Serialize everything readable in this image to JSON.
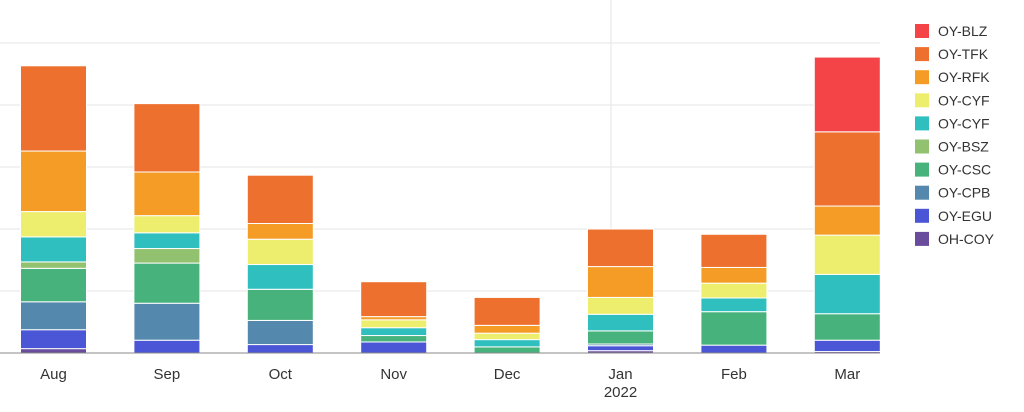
{
  "chart_data": {
    "type": "bar",
    "stacked": true,
    "categories": [
      "Aug",
      "Sep",
      "Oct",
      "Nov",
      "Dec",
      "Jan",
      "Feb",
      "Mar"
    ],
    "category_sublabels": [
      "",
      "",
      "",
      "",
      "",
      "2022",
      "",
      ""
    ],
    "ylim": [
      0,
      100
    ],
    "grid": true,
    "legend_position": "right",
    "series": [
      {
        "name": "OH-COY",
        "color": "#6a4c9c",
        "values": [
          1.5,
          0,
          0,
          0,
          0,
          0.8,
          0,
          0.5
        ]
      },
      {
        "name": "OY-EGU",
        "color": "#4a56d6",
        "values": [
          6.5,
          4.4,
          2.9,
          3.8,
          0,
          1.7,
          2.7,
          3.9
        ]
      },
      {
        "name": "OY-CPB",
        "color": "#5489ad",
        "values": [
          9.6,
          12.7,
          8.3,
          0,
          0,
          0.6,
          0,
          0
        ]
      },
      {
        "name": "OY-CSC",
        "color": "#47b27b",
        "values": [
          11.5,
          13.8,
          10.7,
          2.2,
          2.1,
          4.5,
          11.5,
          9.1
        ]
      },
      {
        "name": "OY-BSZ",
        "color": "#92c16f",
        "values": [
          2.2,
          5.0,
          0,
          0,
          0,
          0,
          0,
          0
        ]
      },
      {
        "name": "OY-CYF",
        "color": "#2fbfbf",
        "values": [
          8.6,
          5.4,
          8.5,
          2.7,
          2.5,
          5.7,
          4.7,
          13.5
        ]
      },
      {
        "name": "OY-CYF",
        "color": "#eeee6e",
        "values": [
          8.7,
          5.9,
          8.7,
          2.7,
          2.2,
          5.8,
          5.1,
          13.5
        ]
      },
      {
        "name": "OY-RFK",
        "color": "#f59c27",
        "values": [
          20.8,
          15.0,
          5.4,
          1.1,
          2.7,
          10.6,
          5.4,
          10.0
        ]
      },
      {
        "name": "OY-TFK",
        "color": "#ee702e",
        "values": [
          29.3,
          23.5,
          16.6,
          12.0,
          9.6,
          12.9,
          11.4,
          25.5
        ]
      },
      {
        "name": "OY-BLZ",
        "color": "#f54447",
        "values": [
          0,
          0,
          0,
          0,
          0,
          0,
          0,
          25.7
        ]
      }
    ]
  }
}
